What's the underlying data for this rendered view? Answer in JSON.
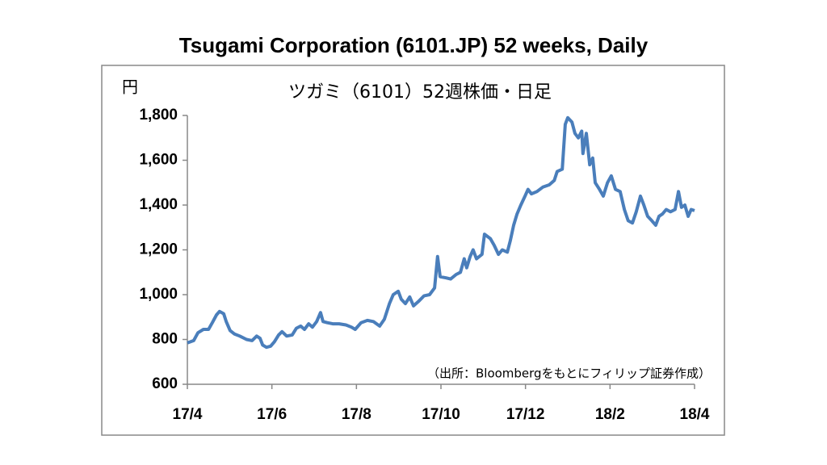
{
  "chart_data": {
    "type": "line",
    "title": "Tsugami Corporation (6101.JP) 52 weeks, Daily",
    "subtitle": "ツガミ（6101）52週株価・日足",
    "y_label": "円",
    "annotation": "（出所：Bloombergをもとにフィリップ証券作成）",
    "xlim": [
      0,
      12
    ],
    "xticks": [
      {
        "value": 0,
        "label": "17/4"
      },
      {
        "value": 2,
        "label": "17/6"
      },
      {
        "value": 4,
        "label": "17/8"
      },
      {
        "value": 6,
        "label": "17/10"
      },
      {
        "value": 8,
        "label": "17/12"
      },
      {
        "value": 10,
        "label": "18/2"
      },
      {
        "value": 12,
        "label": "18/4"
      }
    ],
    "ylim": [
      600,
      1800
    ],
    "yticks": [
      {
        "value": 600,
        "label": "600"
      },
      {
        "value": 800,
        "label": "800"
      },
      {
        "value": 1000,
        "label": "1,000"
      },
      {
        "value": 1200,
        "label": "1,200"
      },
      {
        "value": 1400,
        "label": "1,400"
      },
      {
        "value": 1600,
        "label": "1,600"
      },
      {
        "value": 1800,
        "label": "1,800"
      }
    ],
    "grid": false,
    "x": [
      0,
      0.15,
      0.25,
      0.38,
      0.5,
      0.59,
      0.69,
      0.76,
      0.86,
      0.92,
      1.01,
      1.11,
      1.24,
      1.4,
      1.53,
      1.64,
      1.72,
      1.78,
      1.87,
      1.97,
      2.06,
      2.16,
      2.24,
      2.35,
      2.48,
      2.58,
      2.68,
      2.77,
      2.87,
      2.96,
      3.06,
      3.15,
      3.21,
      3.31,
      3.44,
      3.59,
      3.75,
      3.88,
      3.97,
      4.11,
      4.26,
      4.4,
      4.55,
      4.66,
      4.78,
      4.87,
      4.99,
      5.06,
      5.16,
      5.26,
      5.35,
      5.47,
      5.6,
      5.73,
      5.85,
      5.92,
      5.98,
      6.12,
      6.23,
      6.36,
      6.46,
      6.55,
      6.61,
      6.69,
      6.76,
      6.84,
      6.97,
      7.03,
      7.17,
      7.26,
      7.36,
      7.45,
      7.57,
      7.64,
      7.72,
      7.8,
      7.89,
      7.99,
      8.06,
      8.14,
      8.27,
      8.41,
      8.56,
      8.68,
      8.75,
      8.87,
      8.94,
      9.0,
      9.1,
      9.17,
      9.25,
      9.33,
      9.36,
      9.44,
      9.52,
      9.59,
      9.65,
      9.75,
      9.84,
      9.94,
      10.03,
      10.13,
      10.24,
      10.34,
      10.43,
      10.53,
      10.62,
      10.72,
      10.8,
      10.89,
      10.99,
      11.08,
      11.16,
      11.24,
      11.33,
      11.43,
      11.54,
      11.62,
      11.69,
      11.77,
      11.85,
      11.92,
      12.0
    ],
    "series": [
      {
        "name": "ツガミ",
        "color": "#4a7ebb",
        "values": [
          785,
          795,
          830,
          845,
          845,
          875,
          910,
          925,
          915,
          880,
          840,
          825,
          815,
          800,
          795,
          815,
          805,
          775,
          765,
          770,
          790,
          820,
          835,
          815,
          820,
          850,
          860,
          845,
          870,
          855,
          880,
          920,
          880,
          875,
          870,
          870,
          865,
          855,
          845,
          875,
          885,
          880,
          860,
          890,
          960,
          1000,
          1015,
          980,
          960,
          990,
          950,
          970,
          995,
          1000,
          1030,
          1170,
          1080,
          1075,
          1070,
          1090,
          1100,
          1160,
          1120,
          1170,
          1200,
          1160,
          1180,
          1270,
          1250,
          1220,
          1180,
          1200,
          1190,
          1240,
          1310,
          1360,
          1400,
          1440,
          1470,
          1450,
          1460,
          1480,
          1490,
          1510,
          1550,
          1560,
          1760,
          1790,
          1770,
          1720,
          1700,
          1730,
          1630,
          1720,
          1580,
          1610,
          1500,
          1470,
          1440,
          1500,
          1530,
          1470,
          1460,
          1380,
          1330,
          1320,
          1370,
          1440,
          1400,
          1350,
          1330,
          1310,
          1350,
          1360,
          1380,
          1370,
          1380,
          1460,
          1390,
          1400,
          1350,
          1380,
          1375
        ]
      }
    ]
  }
}
